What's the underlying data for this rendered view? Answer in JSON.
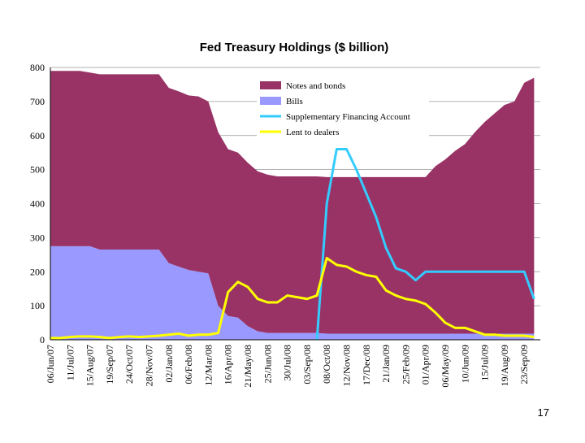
{
  "chart_data": {
    "type": "area",
    "title": "Fed Treasury Holdings ($ billion)",
    "categories": [
      "06/Jun/07",
      null,
      "11/Jul/07",
      null,
      "15/Aug/07",
      null,
      "19/Sep/07",
      null,
      "24/Oct/07",
      null,
      "28/Nov/07",
      null,
      "02/Jan/08",
      null,
      "06/Feb/08",
      null,
      "12/Mar/08",
      null,
      "16/Apr/08",
      null,
      "21/May/08",
      null,
      "25/Jun/08",
      null,
      "30/Jul/08",
      null,
      "03/Sep/08",
      null,
      "08/Oct/08",
      null,
      "12/Nov/08",
      null,
      "17/Dec/08",
      null,
      "21/Jan/09",
      null,
      "25/Feb/09",
      null,
      "01/Apr/09",
      null,
      "06/May/09",
      null,
      "10/Jun/09",
      null,
      "15/Jul/09",
      null,
      "19/Aug/09",
      null,
      "23/Sep/09",
      null
    ],
    "series": [
      {
        "name": "Notes and bonds",
        "kind": "area",
        "color": "#993366",
        "values": [
          515,
          515,
          515,
          515,
          510,
          515,
          515,
          515,
          515,
          515,
          515,
          515,
          515,
          515,
          513,
          515,
          505,
          510,
          490,
          485,
          480,
          470,
          465,
          460,
          460,
          460,
          460,
          460,
          460,
          460,
          460,
          460,
          460,
          460,
          460,
          460,
          460,
          460,
          460,
          492,
          512,
          537,
          557,
          592,
          622,
          647,
          672,
          682,
          737,
          752
        ]
      },
      {
        "name": "Bills",
        "kind": "area",
        "color": "#9999ff",
        "values": [
          275,
          275,
          275,
          275,
          275,
          265,
          265,
          265,
          265,
          265,
          265,
          265,
          225,
          215,
          205,
          200,
          195,
          100,
          70,
          65,
          40,
          25,
          20,
          20,
          20,
          20,
          20,
          20,
          18,
          18,
          18,
          18,
          18,
          18,
          18,
          18,
          18,
          18,
          18,
          18,
          18,
          18,
          18,
          18,
          18,
          18,
          18,
          18,
          18,
          18
        ]
      },
      {
        "name": "Supplementary Financing Account",
        "kind": "line",
        "color": "#33ccff",
        "values": [
          null,
          null,
          null,
          null,
          null,
          null,
          null,
          null,
          null,
          null,
          null,
          null,
          null,
          null,
          null,
          null,
          null,
          null,
          null,
          null,
          null,
          null,
          null,
          null,
          null,
          null,
          null,
          0,
          400,
          560,
          560,
          500,
          430,
          360,
          270,
          210,
          200,
          175,
          200,
          200,
          200,
          200,
          200,
          200,
          200,
          200,
          200,
          200,
          200,
          120
        ]
      },
      {
        "name": "Lent to dealers",
        "kind": "line",
        "color": "#ffff00",
        "values": [
          5,
          5,
          8,
          10,
          10,
          8,
          5,
          8,
          10,
          8,
          10,
          12,
          15,
          18,
          12,
          15,
          15,
          20,
          140,
          170,
          155,
          120,
          110,
          110,
          130,
          125,
          120,
          130,
          240,
          220,
          215,
          200,
          190,
          185,
          145,
          130,
          120,
          115,
          105,
          80,
          50,
          35,
          35,
          25,
          15,
          15,
          12,
          12,
          12,
          8
        ]
      }
    ],
    "stacked": true,
    "ylim": [
      0,
      800
    ],
    "yticks": [
      0,
      100,
      200,
      300,
      400,
      500,
      600,
      700,
      800
    ],
    "grid": true,
    "legend": "top-right",
    "page_number": "17"
  }
}
